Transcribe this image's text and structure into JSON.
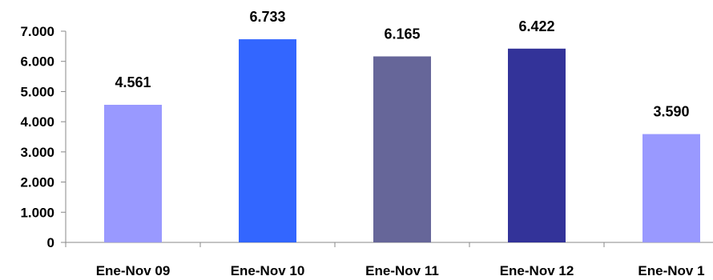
{
  "chart_data": {
    "type": "bar",
    "categories": [
      "Ene-Nov 09",
      "Ene-Nov 10",
      "Ene-Nov 11",
      "Ene-Nov 12",
      "Ene-Nov 1"
    ],
    "values": [
      4561,
      6733,
      6165,
      6422,
      3590
    ],
    "value_labels": [
      "4.561",
      "6.733",
      "6.165",
      "6.422",
      "3.590"
    ],
    "bar_colors": [
      "#9999ff",
      "#3366ff",
      "#666699",
      "#333399",
      "#9999ff"
    ],
    "yticks": [
      0,
      1000,
      2000,
      3000,
      4000,
      5000,
      6000,
      7000
    ],
    "ytick_labels": [
      "0",
      "1.000",
      "2.000",
      "3.000",
      "4.000",
      "5.000",
      "6.000",
      "7.000"
    ],
    "ylim": [
      0,
      7000
    ],
    "title": "",
    "xlabel": "",
    "ylabel": "",
    "grid": false,
    "legend": "none"
  }
}
